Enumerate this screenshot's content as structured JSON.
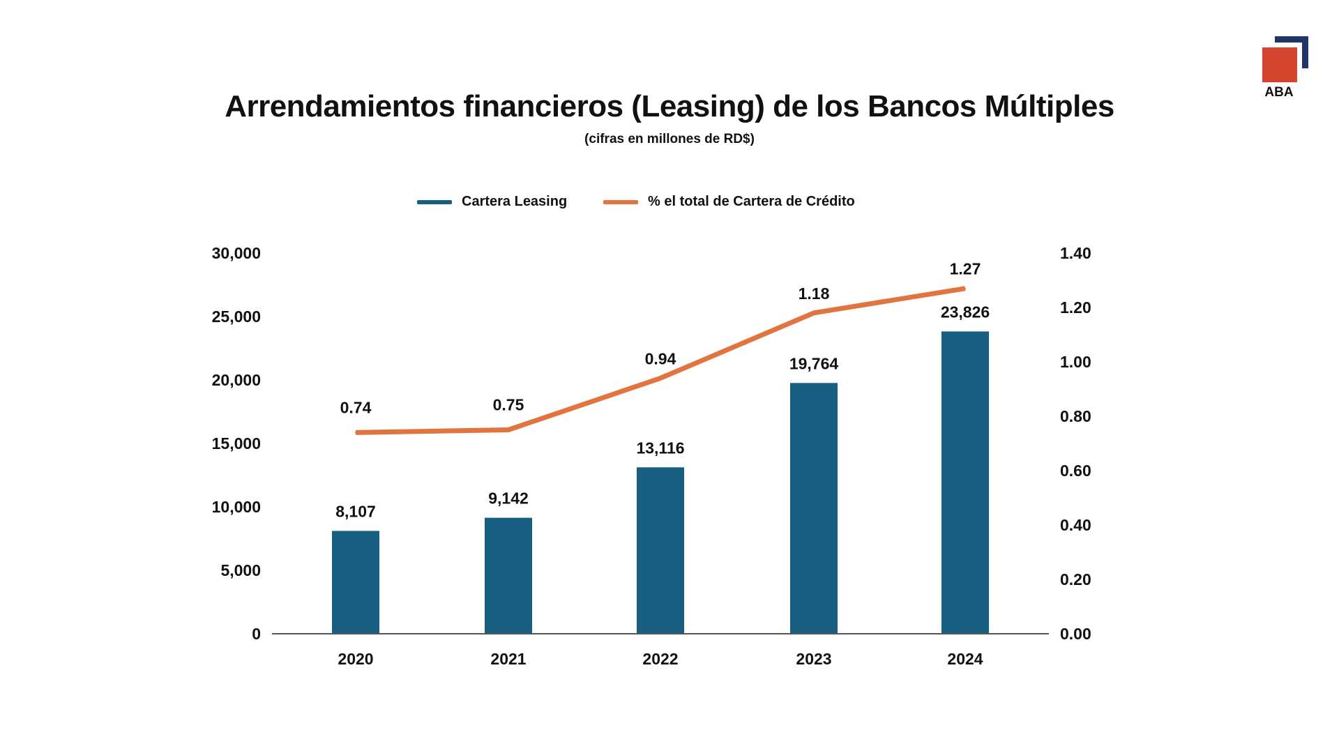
{
  "logo": {
    "text": "ABA",
    "colors": {
      "red": "#d3452f",
      "navy": "#1f3566"
    }
  },
  "chart_data": {
    "type": "bar+line",
    "title": "Arrendamientos financieros (Leasing) de los Bancos Múltiples",
    "subtitle": "(cifras en millones de RD$)",
    "categories": [
      "2020",
      "2021",
      "2022",
      "2023",
      "2024"
    ],
    "series": [
      {
        "name": "Cartera Leasing",
        "type": "bar",
        "axis": "left",
        "color": "#175e80",
        "values": [
          8107,
          9142,
          13116,
          19764,
          23826
        ],
        "labels": [
          "8,107",
          "9,142",
          "13,116",
          "19,764",
          "23,826"
        ]
      },
      {
        "name": "% el total de Cartera de Crédito",
        "type": "line",
        "axis": "right",
        "color": "#e2743f",
        "values": [
          0.74,
          0.75,
          0.94,
          1.18,
          1.27
        ],
        "labels": [
          "0.74",
          "0.75",
          "0.94",
          "1.18",
          "1.27"
        ]
      }
    ],
    "y_left": {
      "range": [
        0,
        30000
      ],
      "ticks": [
        "0",
        "5,000",
        "10,000",
        "15,000",
        "20,000",
        "25,000",
        "30,000"
      ]
    },
    "y_right": {
      "range": [
        0,
        1.4
      ],
      "ticks": [
        "0.00",
        "0.20",
        "0.40",
        "0.60",
        "0.80",
        "1.00",
        "1.20",
        "1.40"
      ]
    },
    "legend_position": "top",
    "grid": false
  }
}
